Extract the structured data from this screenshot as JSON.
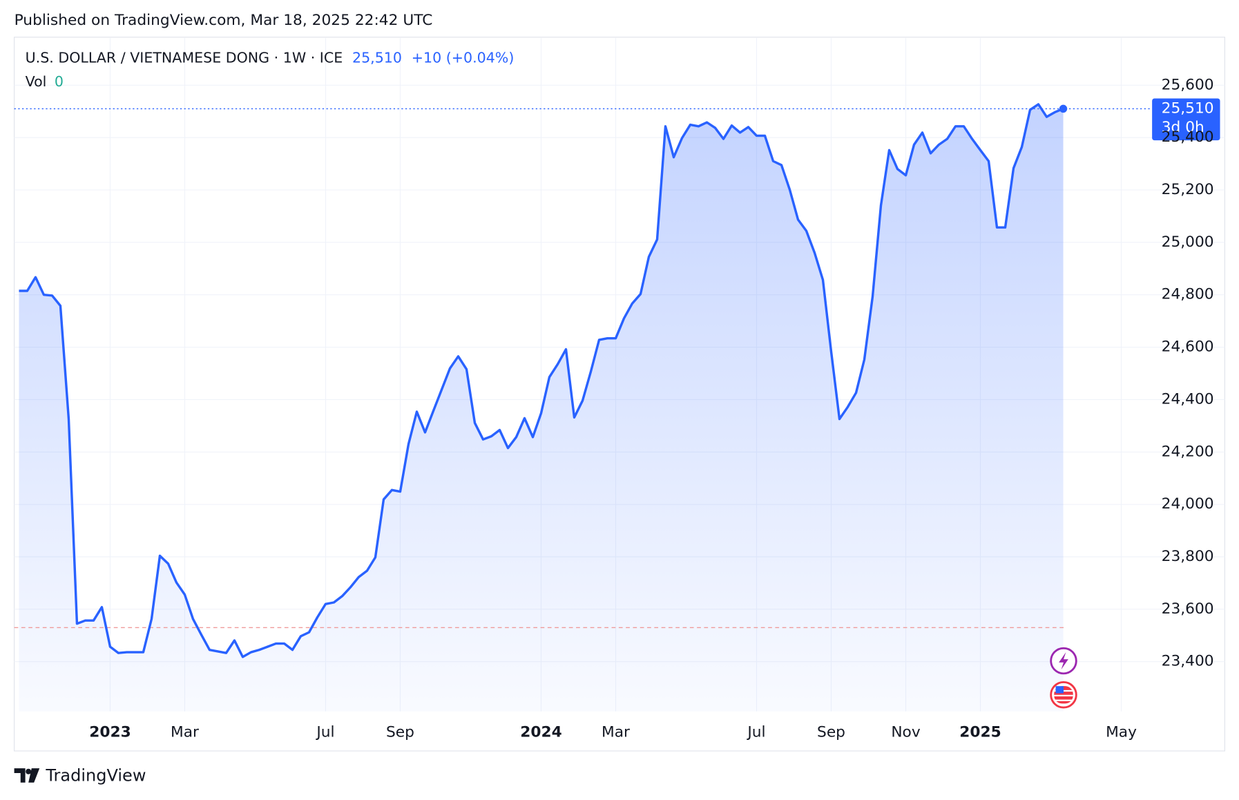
{
  "published": "Published on TradingView.com, Mar 18, 2025 22:42 UTC",
  "brand": "TradingView",
  "chart_data": {
    "type": "area",
    "title": "U.S. DOLLAR / VIETNAMESE DONG · 1W · ICE",
    "last": {
      "value": 25510,
      "label": "25,510"
    },
    "change": "+10 (+0.04%)",
    "countdown": "3d 0h",
    "volume_label": "Vol",
    "volume": {
      "value": 0,
      "label": "0"
    },
    "reference_line": 23530,
    "categories": [
      null,
      null,
      null,
      null,
      null,
      null,
      null,
      null,
      null,
      null,
      null,
      "2023",
      null,
      null,
      null,
      null,
      null,
      null,
      null,
      null,
      "Mar",
      null,
      null,
      null,
      null,
      null,
      null,
      null,
      null,
      null,
      null,
      null,
      null,
      null,
      null,
      null,
      null,
      "Jul",
      null,
      null,
      null,
      null,
      null,
      null,
      null,
      null,
      "Sep",
      null,
      null,
      null,
      null,
      null,
      null,
      null,
      null,
      null,
      null,
      null,
      null,
      null,
      null,
      null,
      null,
      "2024",
      null,
      null,
      null,
      null,
      null,
      null,
      null,
      null,
      "Mar",
      null,
      null,
      null,
      null,
      null,
      null,
      null,
      null,
      null,
      null,
      null,
      null,
      null,
      null,
      null,
      null,
      "Jul",
      null,
      null,
      null,
      null,
      null,
      null,
      null,
      null,
      "Sep",
      null,
      null,
      null,
      null,
      null,
      null,
      null,
      null,
      "Nov",
      null,
      null,
      null,
      null,
      null,
      null,
      null,
      null,
      "2025",
      null,
      null,
      null,
      null,
      null,
      null,
      null,
      null,
      null,
      null,
      null,
      null,
      null,
      null,
      null,
      null,
      "May"
    ],
    "series": [
      {
        "name": "USDVND",
        "color": "#2962ff",
        "values": [
          24815,
          24815,
          24867,
          24800,
          24797,
          24758,
          24326,
          23545,
          23557,
          23557,
          23608,
          23457,
          23433,
          23436,
          23436,
          23436,
          23563,
          23804,
          23774,
          23702,
          23656,
          23563,
          23503,
          23445,
          23439,
          23433,
          23481,
          23418,
          23436,
          23445,
          23457,
          23469,
          23469,
          23445,
          23497,
          23512,
          23569,
          23620,
          23626,
          23650,
          23684,
          23723,
          23747,
          23798,
          24019,
          24055,
          24049,
          24230,
          24354,
          24275,
          24357,
          24438,
          24519,
          24565,
          24516,
          24311,
          24248,
          24260,
          24284,
          24215,
          24257,
          24329,
          24257,
          24348,
          24486,
          24535,
          24592,
          24332,
          24396,
          24507,
          24628,
          24634,
          24634,
          24710,
          24767,
          24803,
          24945,
          25011,
          25443,
          25325,
          25398,
          25449,
          25443,
          25458,
          25437,
          25395,
          25446,
          25419,
          25440,
          25407,
          25407,
          25310,
          25295,
          25201,
          25087,
          25044,
          24960,
          24857,
          24583,
          24326,
          24372,
          24426,
          24553,
          24794,
          25141,
          25352,
          25280,
          25256,
          25373,
          25419,
          25340,
          25373,
          25395,
          25443,
          25443,
          25395,
          25352,
          25310,
          25057,
          25057,
          25283,
          25364,
          25506,
          25527,
          25479,
          25497,
          25510,
          null,
          null,
          null,
          null,
          null,
          null,
          null
        ]
      }
    ],
    "ylim": [
      23210,
      25780
    ],
    "yticks": [
      {
        "value": 23400,
        "label": "23,400"
      },
      {
        "value": 23600,
        "label": "23,600"
      },
      {
        "value": 23800,
        "label": "23,800"
      },
      {
        "value": 24000,
        "label": "24,000"
      },
      {
        "value": 24200,
        "label": "24,200"
      },
      {
        "value": 24400,
        "label": "24,400"
      },
      {
        "value": 24600,
        "label": "24,600"
      },
      {
        "value": 24800,
        "label": "24,800"
      },
      {
        "value": 25000,
        "label": "25,000"
      },
      {
        "value": 25200,
        "label": "25,200"
      },
      {
        "value": 25400,
        "label": "25,400"
      },
      {
        "value": 25600,
        "label": "25,600"
      }
    ],
    "grid": true
  }
}
